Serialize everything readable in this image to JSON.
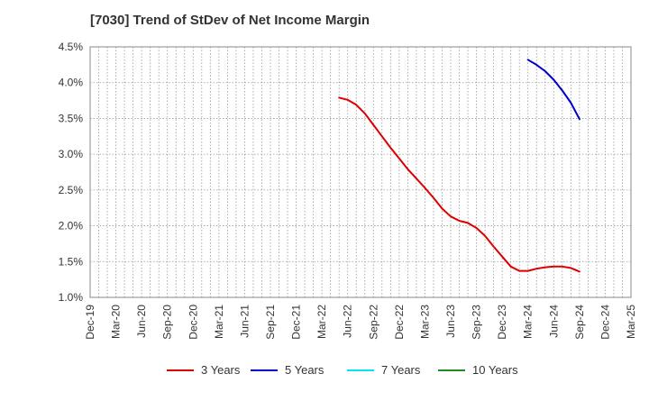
{
  "chart_data": {
    "type": "line",
    "title": "[7030]  Trend of StDev of Net Income Margin",
    "xlabel": "",
    "ylabel": "",
    "ylim": [
      1.0,
      4.5
    ],
    "yticks": [
      "1.0%",
      "1.5%",
      "2.0%",
      "2.5%",
      "3.0%",
      "3.5%",
      "4.0%",
      "4.5%"
    ],
    "ytick_values": [
      1.0,
      1.5,
      2.0,
      2.5,
      3.0,
      3.5,
      4.0,
      4.5
    ],
    "categories": [
      "Dec-19",
      "Mar-20",
      "Jun-20",
      "Sep-20",
      "Dec-20",
      "Mar-21",
      "Jun-21",
      "Sep-21",
      "Dec-21",
      "Mar-22",
      "Jun-22",
      "Sep-22",
      "Dec-22",
      "Mar-23",
      "Jun-23",
      "Sep-23",
      "Dec-23",
      "Mar-24",
      "Jun-24",
      "Sep-24",
      "Dec-24",
      "Mar-25"
    ],
    "grid": true,
    "legend": "bottom",
    "series": [
      {
        "name": "3 Years",
        "color": "#dd0000",
        "points": [
          {
            "x": "May-22",
            "y": 3.79
          },
          {
            "x": "Jun-22",
            "y": 3.76
          },
          {
            "x": "Jul-22",
            "y": 3.69
          },
          {
            "x": "Aug-22",
            "y": 3.57
          },
          {
            "x": "Sep-22",
            "y": 3.41
          },
          {
            "x": "Oct-22",
            "y": 3.25
          },
          {
            "x": "Nov-22",
            "y": 3.09
          },
          {
            "x": "Dec-22",
            "y": 2.94
          },
          {
            "x": "Jan-23",
            "y": 2.79
          },
          {
            "x": "Feb-23",
            "y": 2.66
          },
          {
            "x": "Mar-23",
            "y": 2.53
          },
          {
            "x": "Apr-23",
            "y": 2.39
          },
          {
            "x": "May-23",
            "y": 2.24
          },
          {
            "x": "Jun-23",
            "y": 2.13
          },
          {
            "x": "Jul-23",
            "y": 2.07
          },
          {
            "x": "Aug-23",
            "y": 2.04
          },
          {
            "x": "Sep-23",
            "y": 1.97
          },
          {
            "x": "Oct-23",
            "y": 1.86
          },
          {
            "x": "Nov-23",
            "y": 1.71
          },
          {
            "x": "Dec-23",
            "y": 1.57
          },
          {
            "x": "Jan-24",
            "y": 1.43
          },
          {
            "x": "Feb-24",
            "y": 1.37
          },
          {
            "x": "Mar-24",
            "y": 1.37
          },
          {
            "x": "Apr-24",
            "y": 1.4
          },
          {
            "x": "May-24",
            "y": 1.42
          },
          {
            "x": "Jun-24",
            "y": 1.43
          },
          {
            "x": "Jul-24",
            "y": 1.43
          },
          {
            "x": "Aug-24",
            "y": 1.41
          },
          {
            "x": "Sep-24",
            "y": 1.36
          }
        ]
      },
      {
        "name": "5 Years",
        "color": "#0000cc",
        "points": [
          {
            "x": "Mar-24",
            "y": 4.32
          },
          {
            "x": "Apr-24",
            "y": 4.25
          },
          {
            "x": "May-24",
            "y": 4.16
          },
          {
            "x": "Jun-24",
            "y": 4.04
          },
          {
            "x": "Jul-24",
            "y": 3.89
          },
          {
            "x": "Aug-24",
            "y": 3.72
          },
          {
            "x": "Sep-24",
            "y": 3.49
          }
        ]
      },
      {
        "name": "7 Years",
        "color": "#00e5ee",
        "points": []
      },
      {
        "name": "10 Years",
        "color": "#228b22",
        "points": []
      }
    ]
  }
}
